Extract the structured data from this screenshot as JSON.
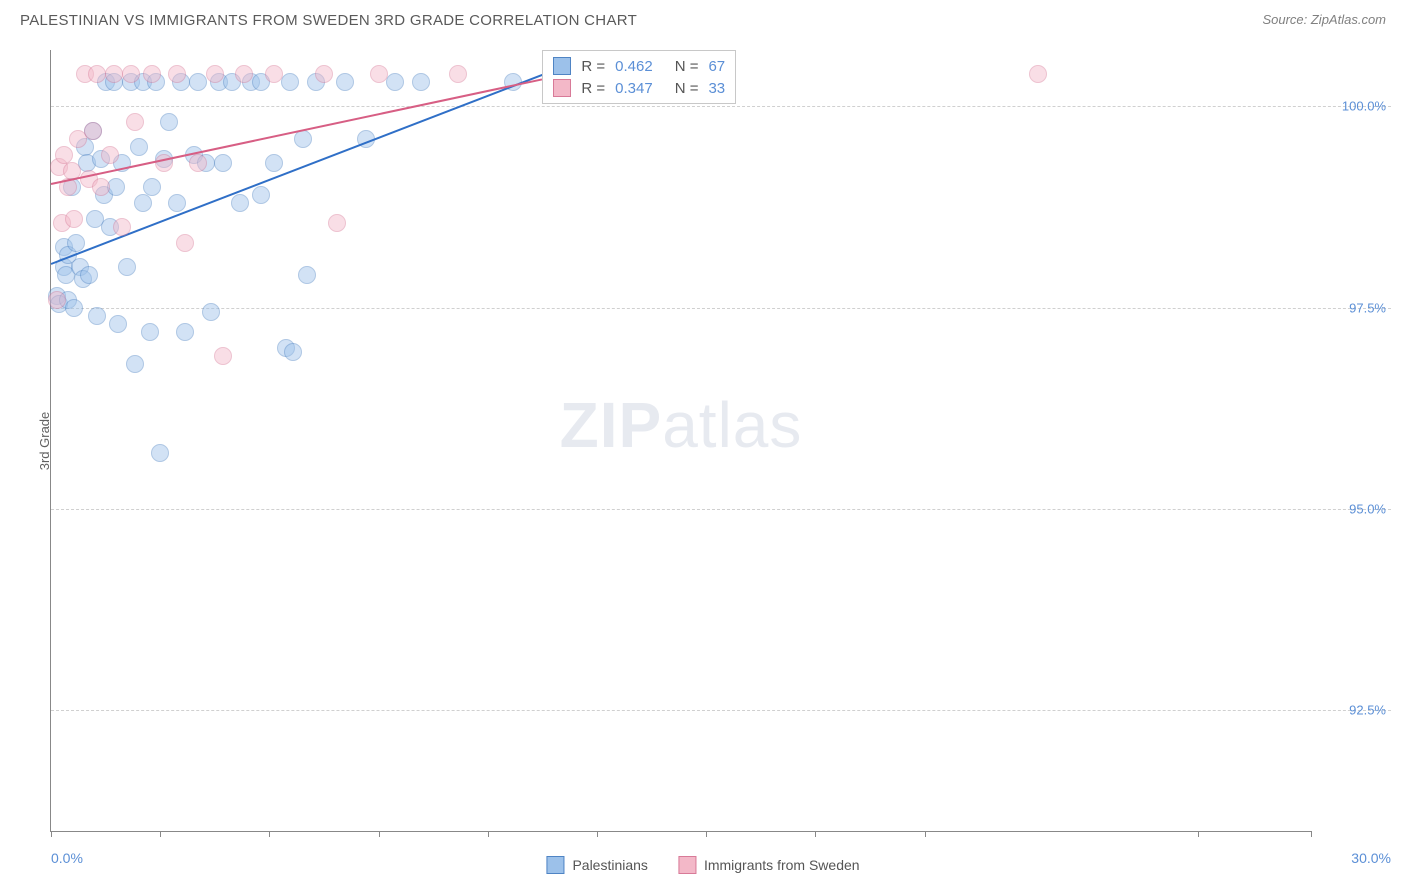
{
  "header": {
    "title": "PALESTINIAN VS IMMIGRANTS FROM SWEDEN 3RD GRADE CORRELATION CHART",
    "source": "Source: ZipAtlas.com"
  },
  "watermark": {
    "zip": "ZIP",
    "atlas": "atlas"
  },
  "chart": {
    "type": "scatter",
    "ylabel": "3rd Grade",
    "xlim": [
      0.0,
      30.0
    ],
    "ylim": [
      91.0,
      100.7
    ],
    "xlim_labels": [
      "0.0%",
      "30.0%"
    ],
    "xtick_positions": [
      0,
      2.6,
      5.2,
      7.8,
      10.4,
      13.0,
      15.6,
      18.2,
      20.8,
      27.3,
      30.0
    ],
    "ygrid": [
      {
        "v": 100.0,
        "label": "100.0%"
      },
      {
        "v": 97.5,
        "label": "97.5%"
      },
      {
        "v": 95.0,
        "label": "95.0%"
      },
      {
        "v": 92.5,
        "label": "92.5%"
      }
    ],
    "background_color": "#ffffff",
    "grid_color": "#d0d0d0",
    "axis_color": "#888888",
    "marker_radius": 9,
    "marker_opacity": 0.45,
    "series": [
      {
        "name": "Palestinians",
        "fill": "#9cc1ea",
        "stroke": "#4f84c4",
        "trend": {
          "x1": 0.0,
          "y1": 98.05,
          "x2": 11.7,
          "y2": 100.4,
          "color": "#2f6fc7",
          "width": 2
        },
        "stats": {
          "R": "0.462",
          "N": "67"
        },
        "points": [
          [
            0.15,
            97.65
          ],
          [
            0.2,
            97.55
          ],
          [
            0.3,
            98.25
          ],
          [
            0.3,
            98.0
          ],
          [
            0.35,
            97.9
          ],
          [
            0.4,
            98.15
          ],
          [
            0.4,
            97.6
          ],
          [
            0.5,
            99.0
          ],
          [
            0.55,
            97.5
          ],
          [
            0.6,
            98.3
          ],
          [
            0.7,
            98.0
          ],
          [
            0.75,
            97.85
          ],
          [
            0.8,
            99.5
          ],
          [
            0.85,
            99.3
          ],
          [
            0.9,
            97.9
          ],
          [
            1.0,
            99.7
          ],
          [
            1.05,
            98.6
          ],
          [
            1.1,
            97.4
          ],
          [
            1.2,
            99.35
          ],
          [
            1.25,
            98.9
          ],
          [
            1.3,
            100.3
          ],
          [
            1.4,
            98.5
          ],
          [
            1.5,
            100.3
          ],
          [
            1.55,
            99.0
          ],
          [
            1.6,
            97.3
          ],
          [
            1.7,
            99.3
          ],
          [
            1.8,
            98.0
          ],
          [
            1.9,
            100.3
          ],
          [
            2.0,
            96.8
          ],
          [
            2.1,
            99.5
          ],
          [
            2.2,
            100.3
          ],
          [
            2.2,
            98.8
          ],
          [
            2.35,
            97.2
          ],
          [
            2.4,
            99.0
          ],
          [
            2.5,
            100.3
          ],
          [
            2.6,
            95.7
          ],
          [
            2.7,
            99.35
          ],
          [
            2.8,
            99.8
          ],
          [
            3.0,
            98.8
          ],
          [
            3.1,
            100.3
          ],
          [
            3.2,
            97.2
          ],
          [
            3.4,
            99.4
          ],
          [
            3.5,
            100.3
          ],
          [
            3.7,
            99.3
          ],
          [
            3.8,
            97.45
          ],
          [
            4.0,
            100.3
          ],
          [
            4.1,
            99.3
          ],
          [
            4.3,
            100.3
          ],
          [
            4.5,
            98.8
          ],
          [
            4.75,
            100.3
          ],
          [
            5.0,
            98.9
          ],
          [
            5.0,
            100.3
          ],
          [
            5.3,
            99.3
          ],
          [
            5.6,
            97.0
          ],
          [
            5.7,
            100.3
          ],
          [
            5.75,
            96.95
          ],
          [
            6.0,
            99.6
          ],
          [
            6.1,
            97.9
          ],
          [
            6.3,
            100.3
          ],
          [
            7.0,
            100.3
          ],
          [
            7.5,
            99.6
          ],
          [
            8.2,
            100.3
          ],
          [
            8.8,
            100.3
          ],
          [
            11.0,
            100.3
          ],
          [
            12.5,
            100.3
          ],
          [
            13.8,
            100.3
          ],
          [
            15.3,
            100.3
          ]
        ]
      },
      {
        "name": "Immigrants from Sweden",
        "fill": "#f3b8c8",
        "stroke": "#d87a98",
        "trend": {
          "x1": 0.0,
          "y1": 99.05,
          "x2": 11.7,
          "y2": 100.35,
          "color": "#d75e84",
          "width": 2
        },
        "stats": {
          "R": "0.347",
          "N": "33"
        },
        "points": [
          [
            0.15,
            97.6
          ],
          [
            0.2,
            99.25
          ],
          [
            0.25,
            98.55
          ],
          [
            0.3,
            99.4
          ],
          [
            0.4,
            99.0
          ],
          [
            0.5,
            99.2
          ],
          [
            0.55,
            98.6
          ],
          [
            0.65,
            99.6
          ],
          [
            0.8,
            100.4
          ],
          [
            0.9,
            99.1
          ],
          [
            1.0,
            99.7
          ],
          [
            1.1,
            100.4
          ],
          [
            1.2,
            99.0
          ],
          [
            1.4,
            99.4
          ],
          [
            1.5,
            100.4
          ],
          [
            1.7,
            98.5
          ],
          [
            1.9,
            100.4
          ],
          [
            2.0,
            99.8
          ],
          [
            2.4,
            100.4
          ],
          [
            2.7,
            99.3
          ],
          [
            3.0,
            100.4
          ],
          [
            3.2,
            98.3
          ],
          [
            3.5,
            99.3
          ],
          [
            3.9,
            100.4
          ],
          [
            4.1,
            96.9
          ],
          [
            4.6,
            100.4
          ],
          [
            5.3,
            100.4
          ],
          [
            6.5,
            100.4
          ],
          [
            6.8,
            98.55
          ],
          [
            7.8,
            100.4
          ],
          [
            9.7,
            100.4
          ],
          [
            15.8,
            100.4
          ],
          [
            23.5,
            100.4
          ]
        ]
      }
    ],
    "stats_box": {
      "x": 11.7,
      "top_y": 100.7
    },
    "legend": [
      {
        "swatch_fill": "#9cc1ea",
        "swatch_stroke": "#4f84c4",
        "label": "Palestinians"
      },
      {
        "swatch_fill": "#f3b8c8",
        "swatch_stroke": "#d87a98",
        "label": "Immigrants from Sweden"
      }
    ]
  }
}
